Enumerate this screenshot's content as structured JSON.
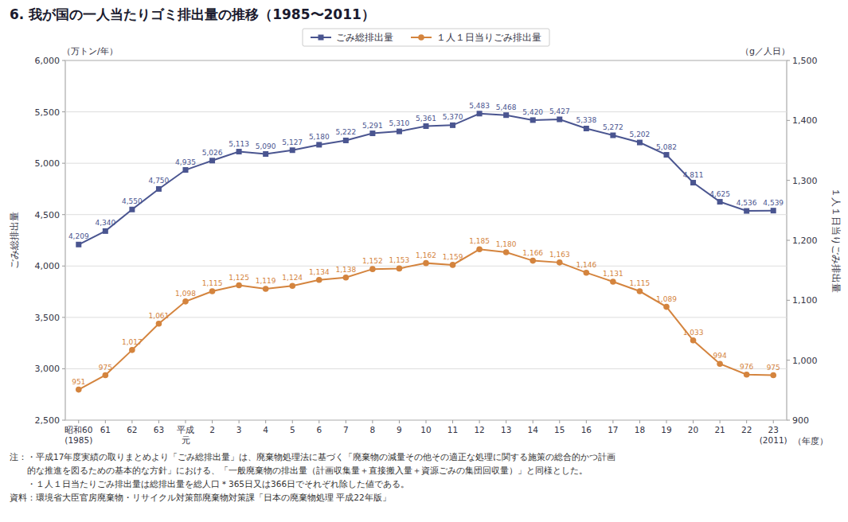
{
  "chart_data": {
    "type": "line",
    "title": "6.  我が国の一人当たりゴミ排出量の推移（1985〜2011）",
    "ylabel": "ごみ総排出量",
    "y2label": "１人１日当りごみ排出量",
    "y_unit": "（万トン/年）",
    "y2_unit": "（g／人日）",
    "xlabel": "（年度）",
    "categories": [
      "昭和60\n(1985)",
      "61",
      "62",
      "63",
      "平成\n元",
      "2",
      "3",
      "4",
      "5",
      "6",
      "7",
      "8",
      "9",
      "10",
      "11",
      "12",
      "13",
      "14",
      "15",
      "16",
      "17",
      "18",
      "19",
      "20",
      "21",
      "22",
      "23\n(2011)"
    ],
    "series": [
      {
        "name": "ごみ総排出量",
        "color": "#4a5590",
        "marker": "square",
        "line_style": "solid",
        "axis": "y",
        "values": [
          4209,
          4340,
          4550,
          4750,
          4935,
          5026,
          5113,
          5090,
          5127,
          5180,
          5222,
          5291,
          5310,
          5361,
          5370,
          5483,
          5468,
          5420,
          5427,
          5338,
          5272,
          5202,
          5082,
          4811,
          4625,
          4536,
          4539
        ],
        "value_labels": [
          "4,209",
          "4,340",
          "4,550",
          "4,750",
          "4,935",
          "5,026",
          "5,113",
          "5,090",
          "5,127",
          "5,180",
          "5,222",
          "5,291",
          "5,310",
          "5,361",
          "5,370",
          "5,483",
          "5,468",
          "5,420",
          "5,427",
          "5,338",
          "5,272",
          "5,202",
          "5,082",
          "4,811",
          "4,625",
          "4,536",
          "4,539"
        ]
      },
      {
        "name": "１人１日当りごみ排出量",
        "color": "#d4843e",
        "marker": "circle",
        "line_style": "solid",
        "axis": "y2",
        "values": [
          951,
          975,
          1017,
          1061,
          1098,
          1115,
          1125,
          1119,
          1124,
          1134,
          1138,
          1152,
          1153,
          1162,
          1159,
          1185,
          1180,
          1166,
          1163,
          1146,
          1131,
          1115,
          1089,
          1033,
          994,
          976,
          975
        ],
        "value_labels": [
          "951",
          "975",
          "1,017",
          "1,061",
          "1,098",
          "1,115",
          "1,125",
          "1,119",
          "1,124",
          "1,134",
          "1,138",
          "1,152",
          "1,153",
          "1,162",
          "1,159",
          "1,185",
          "1,180",
          "1,166",
          "1,163",
          "1,146",
          "1,131",
          "1,115",
          "1,089",
          "1,033",
          "994",
          "976",
          "975"
        ]
      }
    ],
    "ylim": [
      2500,
      6000
    ],
    "yticks": [
      {
        "value": 2500,
        "label": "2,500"
      },
      {
        "value": 3000,
        "label": "3,000"
      },
      {
        "value": 3500,
        "label": "3,500"
      },
      {
        "value": 4000,
        "label": "4,000"
      },
      {
        "value": 4500,
        "label": "4,500"
      },
      {
        "value": 5000,
        "label": "5,000"
      },
      {
        "value": 5500,
        "label": "5,500"
      },
      {
        "value": 6000,
        "label": "6,000"
      }
    ],
    "y2lim": [
      900,
      1500
    ],
    "y2ticks": [
      900,
      {
        "value": 1000,
        "label": "1,000"
      },
      {
        "value": 1100,
        "label": "1,100"
      },
      {
        "value": 1200,
        "label": "1,200"
      },
      {
        "value": 1300,
        "label": "1,300"
      },
      {
        "value": 1400,
        "label": "1,400"
      },
      {
        "value": 1500,
        "label": "1,500"
      }
    ],
    "grid": true,
    "legend": "top",
    "data_labels": true,
    "notes": [
      "注：・平成17年度実績の取りまとめより「ごみ総排出量」は、廃棄物処理法に基づく「廃棄物の減量その他その適正な処理に関する施策の総合的かつ計画",
      "　　的な推進を図るための基本的な方針」における、「一般廃棄物の排出量（計画収集量＋直接搬入量＋資源ごみの集団回収量）」と同様とした。",
      "　　・１人１日当たりごみ排出量は総排出量を総人口＊365日又は366日でそれぞれ除した値である。",
      "資料：環境省大臣官房廃棄物・リサイクル対策部廃棄物対策課「日本の廃棄物処理 平成22年版」"
    ]
  }
}
